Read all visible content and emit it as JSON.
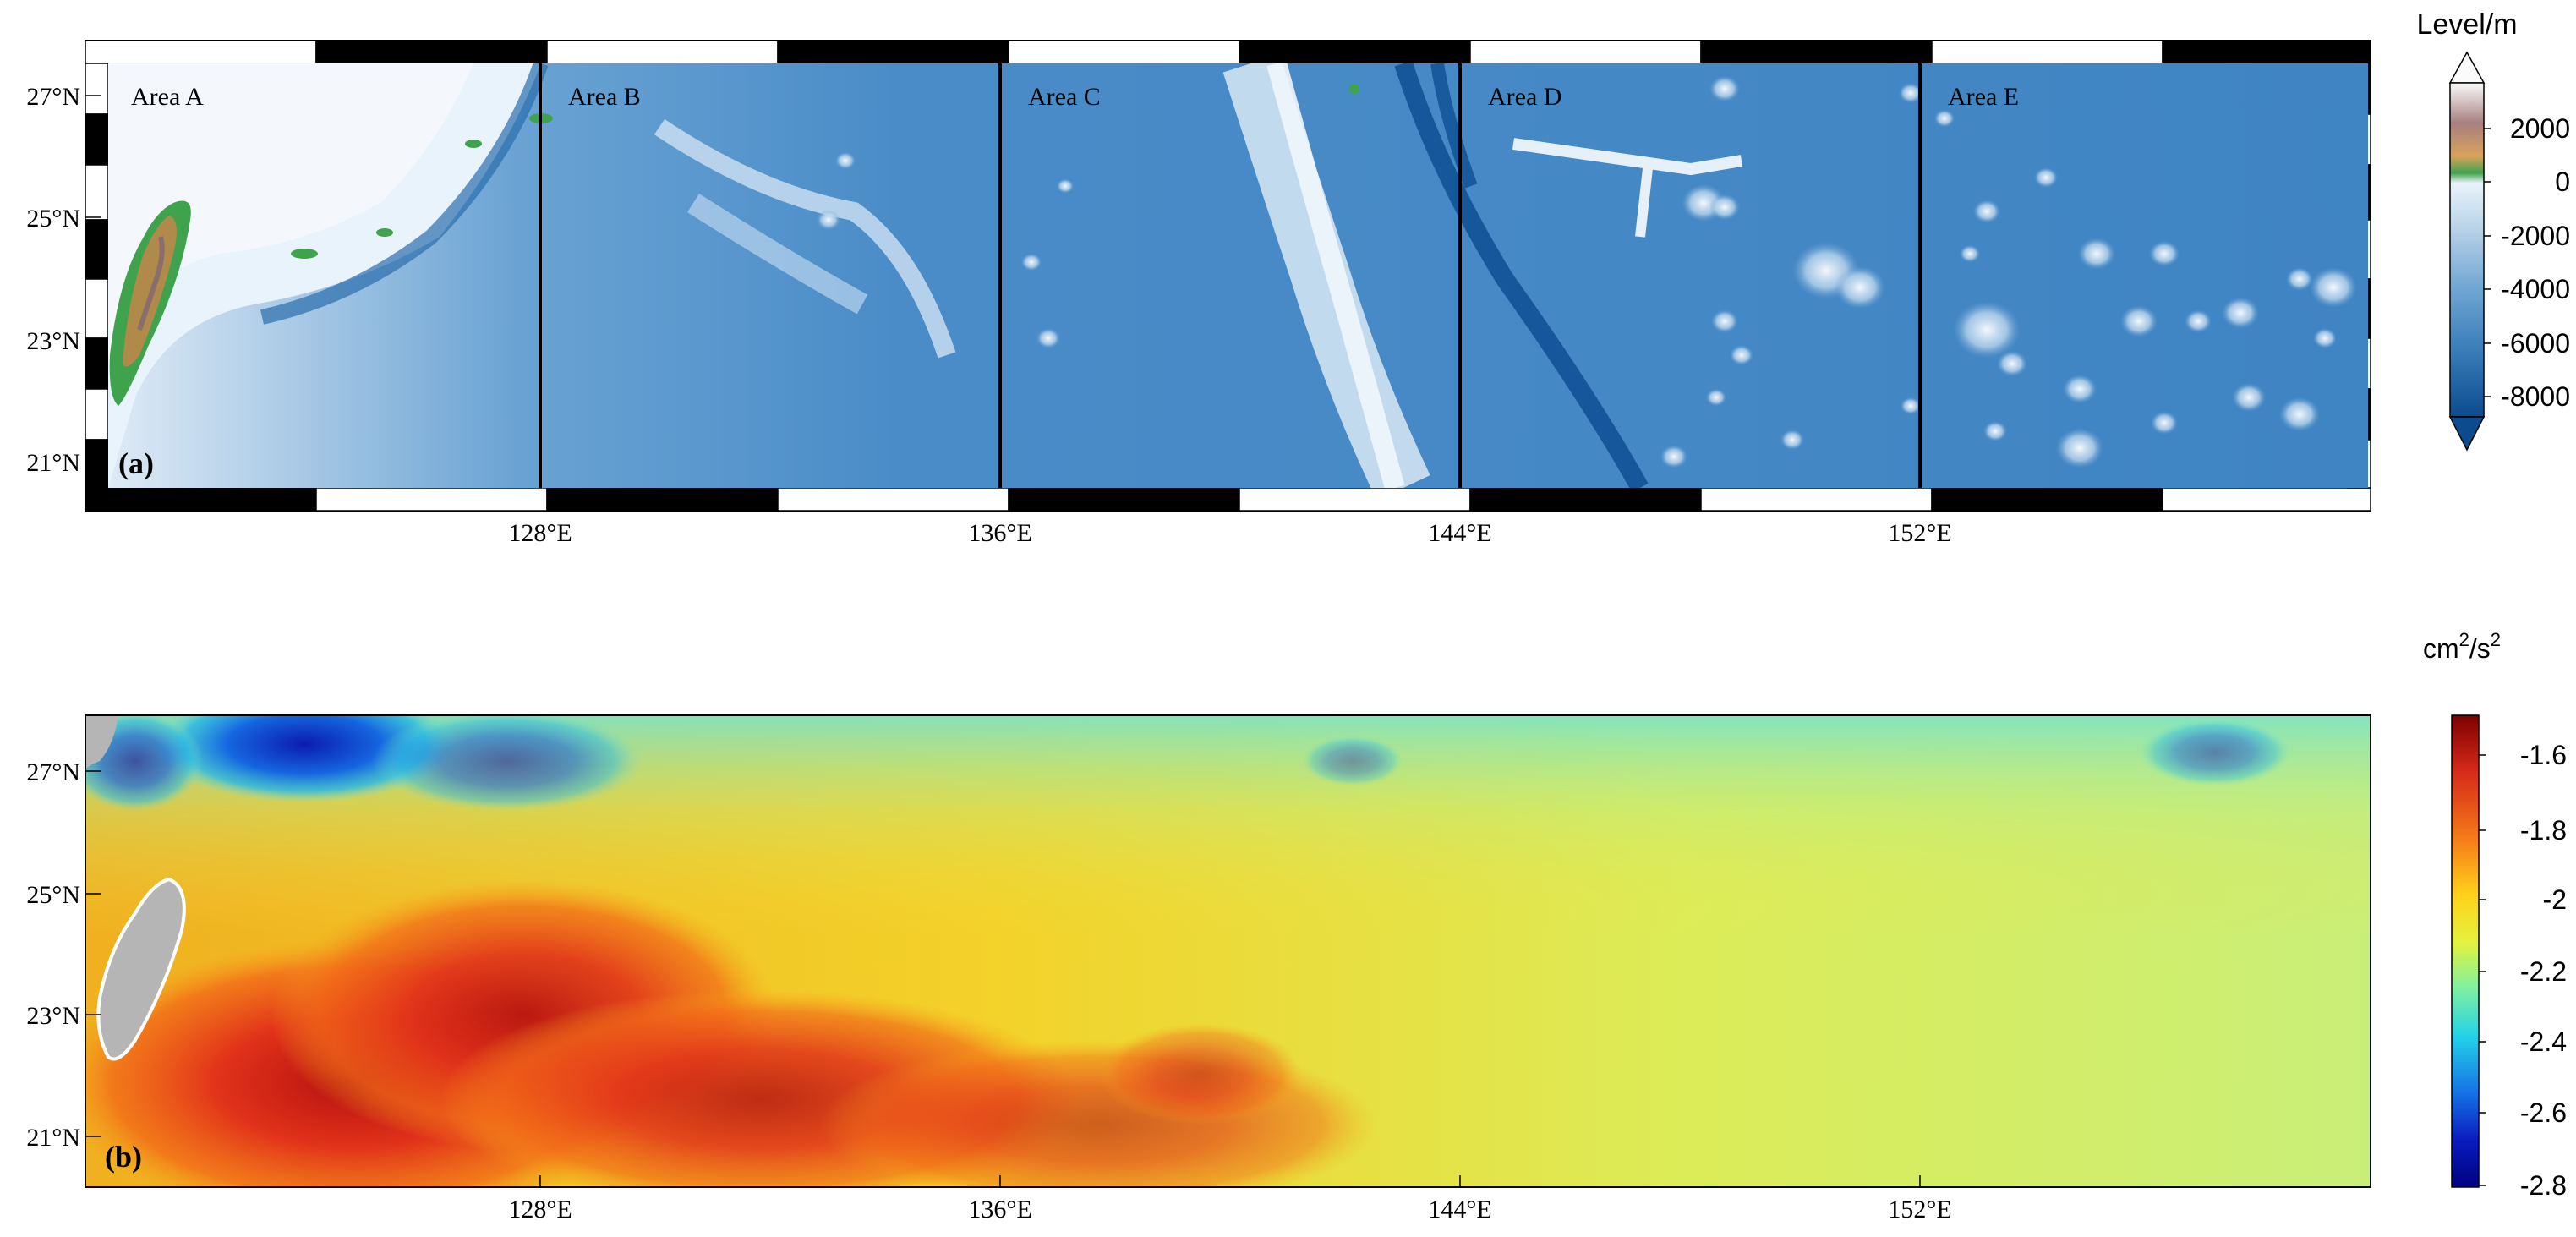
{
  "panels": [
    {
      "id": "a",
      "label": "(a)",
      "lat_ticks": [
        "27°N",
        "25°N",
        "23°N",
        "21°N"
      ],
      "lon_ticks": [
        "128°E",
        "136°E",
        "144°E",
        "152°E"
      ],
      "areas": [
        "Area A",
        "Area B",
        "Area C",
        "Area D",
        "Area E"
      ],
      "colorbar": {
        "title": "Level/m",
        "ticks": [
          "2000",
          "0",
          "-2000",
          "-4000",
          "-6000",
          "-8000"
        ],
        "colors": [
          "#fbfbfb",
          "#a77f7f",
          "#d9a25a",
          "#3fa34d",
          "#e9f3fb",
          "#b3cfe6",
          "#6fa5d2",
          "#3a7db9",
          "#0c4b8e"
        ]
      }
    },
    {
      "id": "b",
      "label": "(b)",
      "lat_ticks": [
        "27°N",
        "25°N",
        "23°N",
        "21°N"
      ],
      "lon_ticks": [
        "128°E",
        "136°E",
        "144°E",
        "152°E"
      ],
      "colorbar": {
        "title_base": "cm",
        "title_exp1": "2",
        "title_mid": "/s",
        "title_exp2": "2",
        "ticks": [
          "-1.6",
          "-1.8",
          "-2",
          "-2.2",
          "-2.4",
          "-2.6",
          "-2.8"
        ],
        "colors": [
          "#7f0000",
          "#d62a1a",
          "#f57a18",
          "#ffd11a",
          "#e4f23c",
          "#7ef0a2",
          "#23d2e8",
          "#1473e6",
          "#0a1cc0",
          "#00007f"
        ]
      }
    }
  ]
}
